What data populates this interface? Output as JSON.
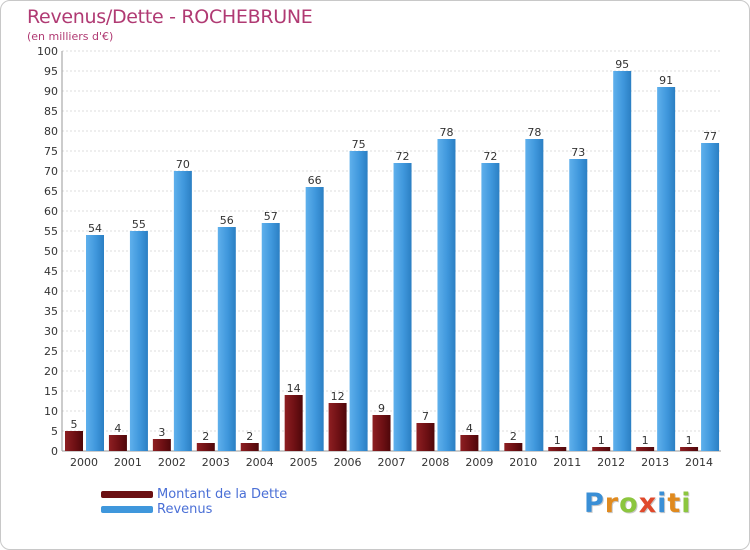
{
  "header": {
    "title": "Revenus/Dette - ROCHEBRUNE",
    "subtitle": "(en milliers d'€)"
  },
  "chart_data": {
    "type": "bar",
    "title": "Revenus/Dette - ROCHEBRUNE",
    "subtitle": "(en milliers d'€)",
    "xlabel": "",
    "ylabel": "",
    "ylim": [
      0,
      100
    ],
    "yticks": [
      0,
      5,
      10,
      15,
      20,
      25,
      30,
      35,
      40,
      45,
      50,
      55,
      60,
      65,
      70,
      75,
      80,
      85,
      90,
      95,
      100
    ],
    "grid": true,
    "legend_placement": "bottom-left",
    "categories": [
      "2000",
      "2001",
      "2002",
      "2003",
      "2004",
      "2005",
      "2006",
      "2007",
      "2008",
      "2009",
      "2010",
      "2011",
      "2012",
      "2013",
      "2014"
    ],
    "series": [
      {
        "name": "Montant de la Dette",
        "color": "#7a1518",
        "values": [
          5,
          4,
          3,
          2,
          2,
          14,
          12,
          9,
          7,
          4,
          2,
          1,
          1,
          1,
          1
        ]
      },
      {
        "name": "Revenus",
        "color": "#3f97dc",
        "values": [
          54,
          55,
          70,
          56,
          57,
          66,
          75,
          72,
          78,
          72,
          78,
          73,
          95,
          91,
          77
        ]
      }
    ]
  },
  "legend": {
    "items": [
      {
        "label": "Montant de la Dette",
        "color": "#6b0f12"
      },
      {
        "label": "Revenus",
        "color": "#3f97dc"
      }
    ]
  },
  "logo": {
    "letters": [
      "P",
      "r",
      "o",
      "x",
      "i",
      "t",
      "i"
    ],
    "colors": [
      "#3a8fd6",
      "#e08a1e",
      "#8cc63e",
      "#e0492b",
      "#3a8fd6",
      "#e08a1e",
      "#8cc63e"
    ]
  }
}
